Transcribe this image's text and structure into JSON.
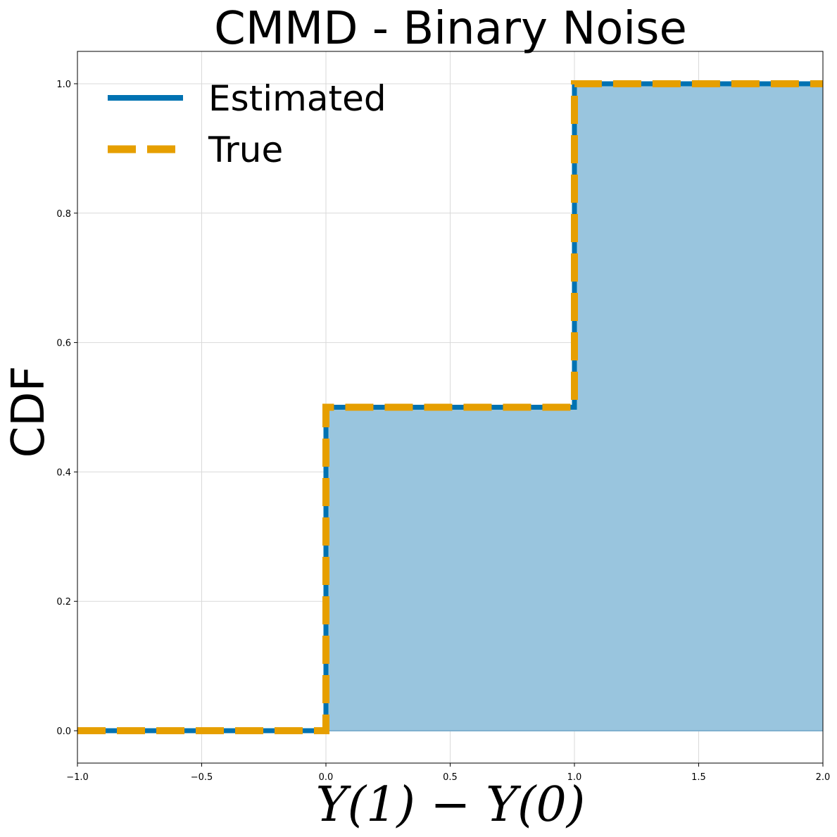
{
  "chart_data": {
    "type": "line",
    "title": "CMMD - Binary Noise",
    "xlabel": "Y(1) − Y(0)",
    "ylabel": "CDF",
    "xlim": [
      -1.0,
      2.0
    ],
    "ylim": [
      -0.05,
      1.05
    ],
    "xticks": [
      -1.0,
      -0.5,
      0.0,
      0.5,
      1.0,
      1.5,
      2.0
    ],
    "xtick_labels": [
      "−1.0",
      "−0.5",
      "0.0",
      "0.5",
      "1.0",
      "1.5",
      "2.0"
    ],
    "yticks": [
      0.0,
      0.2,
      0.4,
      0.6,
      0.8,
      1.0
    ],
    "ytick_labels": [
      "0.0",
      "0.2",
      "0.4",
      "0.6",
      "0.8",
      "1.0"
    ],
    "grid": true,
    "legend_position": "upper-left",
    "series": [
      {
        "name": "Estimated",
        "style": "solid",
        "color": "#0072b2",
        "fill": true,
        "fill_color": "#99c5de",
        "x": [
          -1.0,
          0.0,
          0.0,
          1.0,
          1.0,
          2.0
        ],
        "y": [
          0.0,
          0.0,
          0.5,
          0.5,
          1.0,
          1.0
        ]
      },
      {
        "name": "True",
        "style": "dashed",
        "color": "#e69f00",
        "x": [
          -1.0,
          0.0,
          0.0,
          1.0,
          1.0,
          2.0
        ],
        "y": [
          0.0,
          0.0,
          0.5,
          0.5,
          1.0,
          1.0
        ]
      }
    ]
  }
}
